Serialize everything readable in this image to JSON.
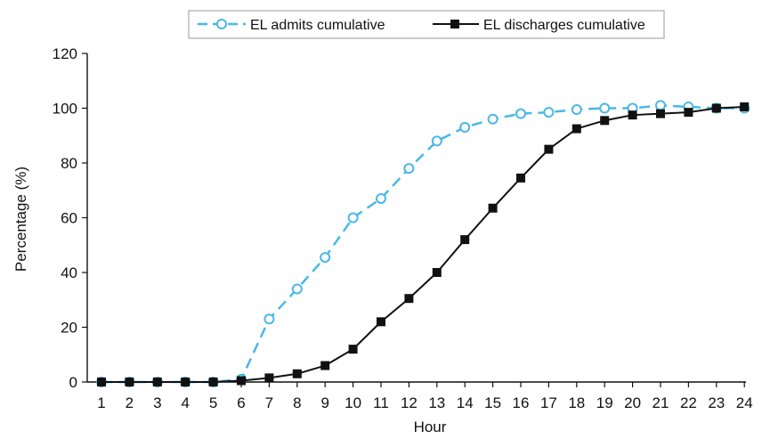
{
  "chart_data": {
    "type": "line",
    "title": "",
    "xlabel": "Hour",
    "ylabel": "Percentage (%)",
    "x": [
      1,
      2,
      3,
      4,
      5,
      6,
      7,
      8,
      9,
      10,
      11,
      12,
      13,
      14,
      15,
      16,
      17,
      18,
      19,
      20,
      21,
      22,
      23,
      24
    ],
    "ylim": [
      0,
      120
    ],
    "yticks": [
      0,
      20,
      40,
      60,
      80,
      100,
      120
    ],
    "grid": false,
    "legend_position": "top-center",
    "series": [
      {
        "name": "EL admits cumulative",
        "values": [
          0,
          0,
          0,
          0,
          0,
          1,
          23,
          34,
          45.5,
          60,
          67,
          78,
          88,
          93,
          96,
          98,
          98.5,
          99.5,
          100,
          100,
          101,
          100.5,
          100,
          100
        ],
        "color": "#4ab8e6",
        "line_style": "dashed",
        "marker": "open-circle"
      },
      {
        "name": "EL discharges cumulative",
        "values": [
          0,
          0,
          0,
          0,
          0,
          0.5,
          1.5,
          3,
          6,
          12,
          22,
          30.5,
          40,
          52,
          63.5,
          74.5,
          85,
          92.5,
          95.5,
          97.5,
          98,
          98.5,
          100,
          100.5
        ],
        "color": "#111111",
        "line_style": "solid",
        "marker": "filled-square"
      }
    ]
  }
}
